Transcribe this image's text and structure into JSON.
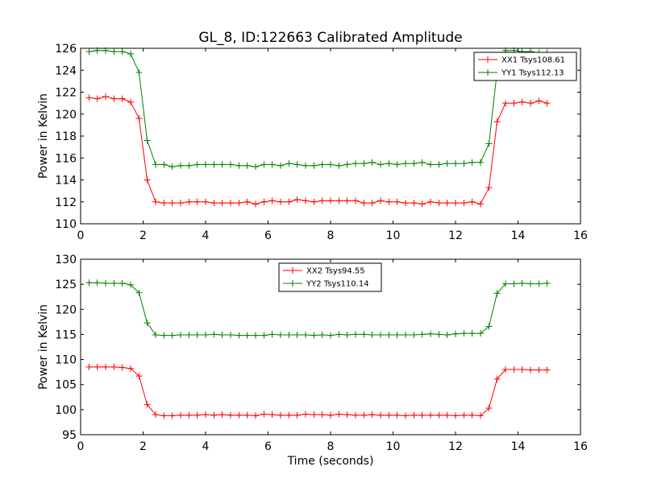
{
  "chart_data": [
    {
      "type": "line",
      "title": "GL_8, ID:122663 Calibrated Amplitude",
      "xlabel": "",
      "ylabel": "Power in Kelvin",
      "xlim": [
        0,
        16
      ],
      "ylim": [
        110,
        126
      ],
      "xticks": [
        "0",
        "2",
        "4",
        "6",
        "8",
        "10",
        "12",
        "14",
        "16"
      ],
      "yticks": [
        "110",
        "112",
        "114",
        "116",
        "118",
        "120",
        "122",
        "124",
        "126"
      ],
      "grid": false,
      "legend_position": "top-right",
      "x": [
        0.27,
        0.53,
        0.8,
        1.07,
        1.33,
        1.6,
        1.87,
        2.13,
        2.4,
        2.67,
        2.93,
        3.2,
        3.47,
        3.73,
        4.0,
        4.27,
        4.53,
        4.8,
        5.07,
        5.33,
        5.6,
        5.87,
        6.13,
        6.4,
        6.67,
        6.93,
        7.2,
        7.47,
        7.73,
        8.0,
        8.27,
        8.53,
        8.8,
        9.07,
        9.33,
        9.6,
        9.87,
        10.13,
        10.4,
        10.67,
        10.93,
        11.2,
        11.47,
        11.73,
        12.0,
        12.27,
        12.53,
        12.8,
        13.07,
        13.33,
        13.6,
        13.87,
        14.13,
        14.4,
        14.67,
        14.93
      ],
      "series": [
        {
          "name": "XX1 Tsys108.61",
          "color": "#ff0000",
          "values": [
            121.5,
            121.4,
            121.6,
            121.4,
            121.4,
            121.1,
            119.6,
            114.0,
            112.0,
            111.9,
            111.9,
            111.9,
            112.0,
            112.0,
            112.0,
            111.9,
            111.9,
            111.9,
            111.9,
            112.0,
            111.8,
            112.0,
            112.1,
            112.0,
            112.0,
            112.2,
            112.1,
            112.0,
            112.1,
            112.1,
            112.1,
            112.1,
            112.1,
            111.9,
            111.9,
            112.1,
            112.0,
            112.0,
            111.9,
            111.9,
            111.8,
            112.0,
            111.9,
            111.9,
            111.9,
            111.9,
            112.0,
            111.8,
            113.3,
            119.3,
            121.0,
            121.0,
            121.1,
            121.0,
            121.2,
            121.0
          ]
        },
        {
          "name": "YY1 Tsys112.13",
          "color": "#008000",
          "values": [
            125.7,
            125.8,
            125.8,
            125.7,
            125.7,
            125.5,
            123.8,
            117.6,
            115.4,
            115.4,
            115.2,
            115.3,
            115.3,
            115.4,
            115.4,
            115.4,
            115.4,
            115.4,
            115.3,
            115.3,
            115.2,
            115.4,
            115.4,
            115.3,
            115.5,
            115.4,
            115.3,
            115.3,
            115.4,
            115.4,
            115.3,
            115.4,
            115.5,
            115.5,
            115.6,
            115.4,
            115.5,
            115.4,
            115.5,
            115.5,
            115.6,
            115.4,
            115.4,
            115.5,
            115.5,
            115.5,
            115.6,
            115.6,
            117.3,
            123.9,
            125.8,
            125.8,
            125.7,
            125.7,
            125.6,
            125.6
          ]
        }
      ]
    },
    {
      "type": "line",
      "title": "",
      "xlabel": "Time (seconds)",
      "ylabel": "Power in Kelvin",
      "xlim": [
        0,
        16
      ],
      "ylim": [
        95,
        130
      ],
      "xticks": [
        "0",
        "2",
        "4",
        "6",
        "8",
        "10",
        "12",
        "14",
        "16"
      ],
      "yticks": [
        "95",
        "100",
        "105",
        "110",
        "115",
        "120",
        "125",
        "130"
      ],
      "grid": false,
      "legend_position": "top-center",
      "x": [
        0.27,
        0.53,
        0.8,
        1.07,
        1.33,
        1.6,
        1.87,
        2.13,
        2.4,
        2.67,
        2.93,
        3.2,
        3.47,
        3.73,
        4.0,
        4.27,
        4.53,
        4.8,
        5.07,
        5.33,
        5.6,
        5.87,
        6.13,
        6.4,
        6.67,
        6.93,
        7.2,
        7.47,
        7.73,
        8.0,
        8.27,
        8.53,
        8.8,
        9.07,
        9.33,
        9.6,
        9.87,
        10.13,
        10.4,
        10.67,
        10.93,
        11.2,
        11.47,
        11.73,
        12.0,
        12.27,
        12.53,
        12.8,
        13.07,
        13.33,
        13.6,
        13.87,
        14.13,
        14.4,
        14.67,
        14.93
      ],
      "series": [
        {
          "name": "XX2 Tsys94.55",
          "color": "#ff0000",
          "values": [
            108.5,
            108.5,
            108.5,
            108.5,
            108.4,
            108.2,
            106.7,
            101.0,
            99.0,
            98.8,
            98.8,
            98.9,
            98.9,
            98.9,
            99.0,
            98.9,
            99.0,
            98.9,
            98.9,
            98.9,
            98.8,
            99.1,
            99.0,
            98.9,
            98.9,
            98.9,
            99.1,
            99.0,
            99.0,
            98.9,
            99.1,
            99.0,
            98.9,
            98.9,
            99.0,
            98.9,
            98.9,
            98.9,
            98.8,
            98.9,
            98.9,
            98.9,
            98.9,
            98.9,
            98.8,
            98.9,
            98.9,
            98.8,
            100.3,
            106.1,
            108.0,
            108.0,
            108.0,
            107.9,
            107.9,
            107.9
          ]
        },
        {
          "name": "YY2 Tsys110.14",
          "color": "#008000",
          "values": [
            125.3,
            125.3,
            125.2,
            125.2,
            125.2,
            124.9,
            123.3,
            117.3,
            114.9,
            114.8,
            114.8,
            114.9,
            114.9,
            114.9,
            114.9,
            115.0,
            114.9,
            114.9,
            114.8,
            114.8,
            114.8,
            114.8,
            115.0,
            114.9,
            114.9,
            114.9,
            114.9,
            114.8,
            114.9,
            114.8,
            115.0,
            114.9,
            115.0,
            115.0,
            114.9,
            114.9,
            114.9,
            114.9,
            114.9,
            114.9,
            115.0,
            115.1,
            115.0,
            114.9,
            115.1,
            115.2,
            115.2,
            115.2,
            116.6,
            123.2,
            125.1,
            125.1,
            125.2,
            125.1,
            125.1,
            125.2
          ]
        }
      ]
    }
  ]
}
